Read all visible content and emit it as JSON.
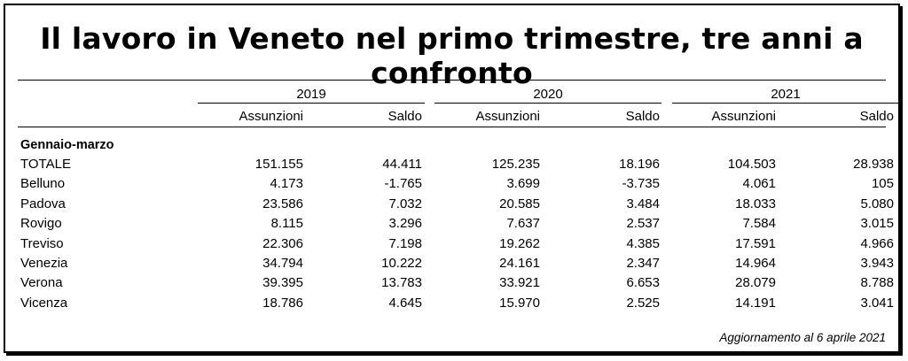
{
  "title": "Il lavoro in Veneto nel primo trimestre, tre anni a confronto",
  "years": [
    "2019",
    "2020",
    "2021"
  ],
  "col_assunzioni": "Assunzioni",
  "col_saldo": "Saldo",
  "section_label": "Gennaio-marzo",
  "rows": [
    {
      "name": "TOTALE",
      "v": [
        "151.155",
        "44.411",
        "125.235",
        "18.196",
        "104.503",
        "28.938"
      ]
    },
    {
      "name": "Belluno",
      "v": [
        "4.173",
        "-1.765",
        "3.699",
        "-3.735",
        "4.061",
        "105"
      ]
    },
    {
      "name": "Padova",
      "v": [
        "23.586",
        "7.032",
        "20.585",
        "3.484",
        "18.033",
        "5.080"
      ]
    },
    {
      "name": "Rovigo",
      "v": [
        "8.115",
        "3.296",
        "7.637",
        "2.537",
        "7.584",
        "3.015"
      ]
    },
    {
      "name": "Treviso",
      "v": [
        "22.306",
        "7.198",
        "19.262",
        "4.385",
        "17.591",
        "4.966"
      ]
    },
    {
      "name": "Venezia",
      "v": [
        "34.794",
        "10.222",
        "24.161",
        "2.347",
        "14.964",
        "3.943"
      ]
    },
    {
      "name": "Verona",
      "v": [
        "39.395",
        "13.783",
        "33.921",
        "6.653",
        "28.079",
        "8.788"
      ]
    },
    {
      "name": "Vicenza",
      "v": [
        "18.786",
        "4.645",
        "15.970",
        "2.525",
        "14.191",
        "3.041"
      ]
    }
  ],
  "note": "Aggiornamento al 6 aprile 2021"
}
